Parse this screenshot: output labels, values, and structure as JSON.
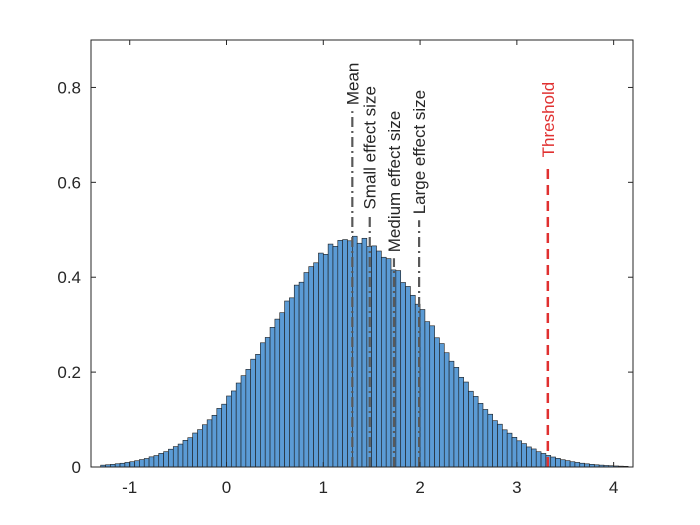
{
  "chart_data": {
    "type": "bar",
    "subtype": "histogram",
    "xlim": [
      -1.4,
      4.2
    ],
    "ylim": [
      0,
      0.9
    ],
    "xticks": [
      -1,
      0,
      1,
      2,
      3,
      4
    ],
    "yticks": [
      0,
      0.2,
      0.4,
      0.6,
      0.8
    ],
    "xtick_labels": [
      "-1",
      "0",
      "1",
      "2",
      "3",
      "4"
    ],
    "ytick_labels": [
      "0",
      "0.2",
      "0.4",
      "0.6",
      "0.8"
    ],
    "grid": false,
    "bin_width": 0.05,
    "distribution_mean": 1.3,
    "distribution_sd": 0.83,
    "bar_color": "#5b9bd5",
    "edge_color": "#1a1a1a",
    "vertical_lines": [
      {
        "name": "mean",
        "label": "Mean",
        "x": 1.3,
        "y_top": 0.75,
        "color": "#595959",
        "style": "dashdot"
      },
      {
        "name": "small-effect",
        "label": "Small effect size",
        "x": 1.48,
        "y_top": 0.53,
        "color": "#595959",
        "style": "dashdot"
      },
      {
        "name": "medium-effect",
        "label": "Medium effect size",
        "x": 1.73,
        "y_top": 0.44,
        "color": "#595959",
        "style": "dashdot"
      },
      {
        "name": "large-effect",
        "label": "Large effect size",
        "x": 1.99,
        "y_top": 0.52,
        "color": "#595959",
        "style": "dashdot"
      },
      {
        "name": "threshold",
        "label": "Threshold",
        "x": 3.32,
        "y_top": 0.64,
        "color": "#e03030",
        "style": "dashed"
      }
    ]
  }
}
